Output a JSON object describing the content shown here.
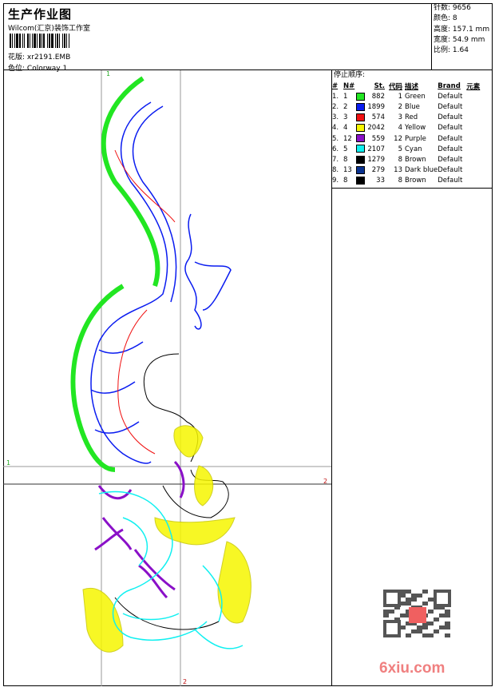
{
  "header": {
    "title": "生产作业图",
    "company": "Wilcom(汇京)装饰工作室",
    "design_label": "花版:",
    "design_value": "xr2191.EMB",
    "colorway_label": "色位:",
    "colorway_value": "Colorway 1"
  },
  "stats": [
    {
      "label": "针数:",
      "value": "9656"
    },
    {
      "label": "颜色:",
      "value": "8"
    },
    {
      "label": "高度:",
      "value": "157.1 mm"
    },
    {
      "label": "宽度:",
      "value": "54.9 mm"
    },
    {
      "label": "比例:",
      "value": "1.64"
    }
  ],
  "stop_sequence": {
    "caption": "停止顺序:",
    "headers": [
      "#",
      "N#",
      "St.",
      "代码",
      "描述",
      "Brand",
      "元素"
    ],
    "rows": [
      {
        "n": "1.",
        "id": "1",
        "color": "#22e622",
        "st": "882",
        "code": "1",
        "desc": "Green",
        "brand": "Default"
      },
      {
        "n": "2.",
        "id": "2",
        "color": "#0a1cf0",
        "st": "1899",
        "code": "2",
        "desc": "Blue",
        "brand": "Default"
      },
      {
        "n": "3.",
        "id": "3",
        "color": "#f01010",
        "st": "574",
        "code": "3",
        "desc": "Red",
        "brand": "Default"
      },
      {
        "n": "4.",
        "id": "4",
        "color": "#f6f600",
        "st": "2042",
        "code": "4",
        "desc": "Yellow",
        "brand": "Default"
      },
      {
        "n": "5.",
        "id": "12",
        "color": "#8a10c8",
        "st": "559",
        "code": "12",
        "desc": "Purple",
        "brand": "Default"
      },
      {
        "n": "6.",
        "id": "5",
        "color": "#10f0f0",
        "st": "2107",
        "code": "5",
        "desc": "Cyan",
        "brand": "Default"
      },
      {
        "n": "7.",
        "id": "8",
        "color": "#000000",
        "st": "1279",
        "code": "8",
        "desc": "Brown",
        "brand": "Default"
      },
      {
        "n": "8.",
        "id": "13",
        "color": "#0a3290",
        "st": "279",
        "code": "13",
        "desc": "Dark blue",
        "brand": "Default"
      },
      {
        "n": "9.",
        "id": "8",
        "color": "#000000",
        "st": "33",
        "code": "8",
        "desc": "Brown",
        "brand": "Default"
      }
    ]
  },
  "guides": {
    "v1": "1",
    "v2": "2",
    "h1": "1",
    "h2": "2"
  },
  "watermark": {
    "text": "6xiu.com",
    "seal": "以图版"
  }
}
